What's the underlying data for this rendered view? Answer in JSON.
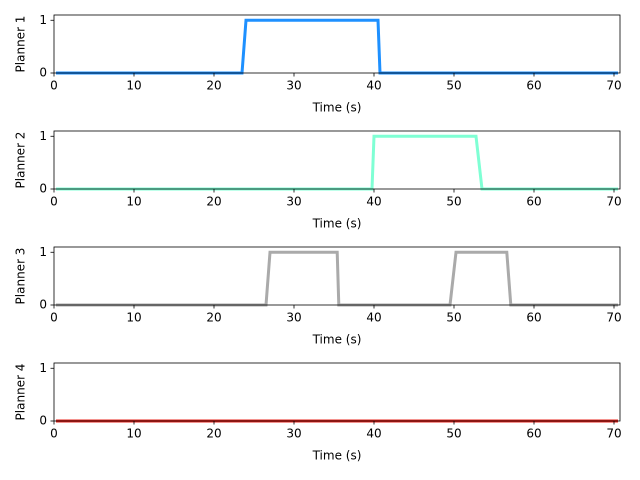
{
  "chart_data": [
    {
      "type": "line",
      "ylabel": "Planner 1",
      "xlabel": "Time (s)",
      "x": [
        0.25,
        23.5,
        24,
        40.5,
        40.75,
        70.5
      ],
      "values": [
        0,
        0,
        1,
        1,
        0,
        0
      ],
      "color": "#1e90ff",
      "xlim": [
        0,
        70.75
      ],
      "ylim": [
        0,
        1.1
      ],
      "xticks": [
        0,
        10,
        20,
        30,
        40,
        50,
        60,
        70
      ],
      "yticks": [
        0,
        1
      ]
    },
    {
      "type": "line",
      "ylabel": "Planner 2",
      "xlabel": "Time (s)",
      "x": [
        0.25,
        39.75,
        40,
        52.75,
        53.5,
        70.5
      ],
      "values": [
        0,
        0,
        1,
        1,
        0,
        0
      ],
      "color": "#7fffd4",
      "xlim": [
        0,
        70.75
      ],
      "ylim": [
        0,
        1.1
      ],
      "xticks": [
        0,
        10,
        20,
        30,
        40,
        50,
        60,
        70
      ],
      "yticks": [
        0,
        1
      ]
    },
    {
      "type": "line",
      "ylabel": "Planner 3",
      "xlabel": "Time (s)",
      "x": [
        0.25,
        26.5,
        27,
        35.4,
        35.6,
        49.5,
        50.25,
        56.6,
        57.1,
        70.5
      ],
      "values": [
        0,
        0,
        1,
        1,
        0,
        0,
        1,
        1,
        0,
        0
      ],
      "color": "#aaaaaa",
      "xlim": [
        0,
        70.75
      ],
      "ylim": [
        0,
        1.1
      ],
      "xticks": [
        0,
        10,
        20,
        30,
        40,
        50,
        60,
        70
      ],
      "yticks": [
        0,
        1
      ]
    },
    {
      "type": "line",
      "ylabel": "Planner 4",
      "xlabel": "Time (s)",
      "x": [
        0.25,
        70.5
      ],
      "values": [
        0,
        0
      ],
      "color": "#e8261e",
      "xlim": [
        0,
        70.75
      ],
      "ylim": [
        0,
        1.1
      ],
      "xticks": [
        0,
        10,
        20,
        30,
        40,
        50,
        60,
        70
      ],
      "yticks": [
        0,
        1
      ]
    }
  ]
}
